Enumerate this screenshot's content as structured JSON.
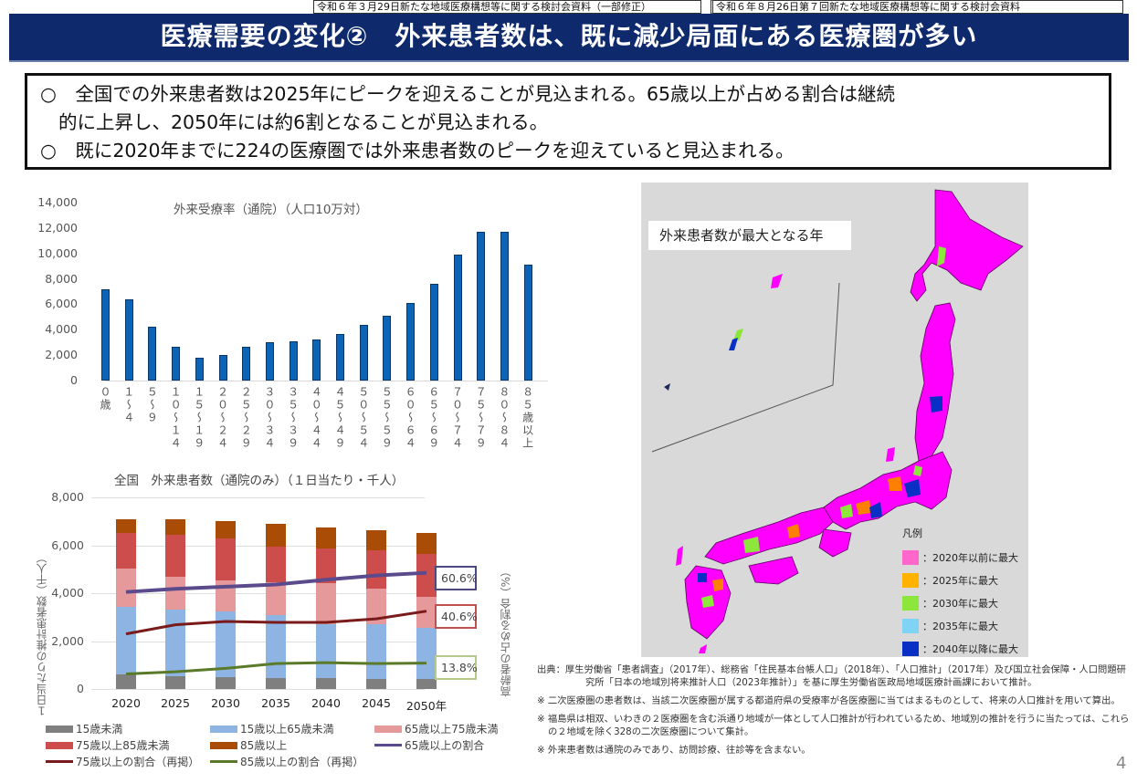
{
  "header": {
    "source_tag_1": "令和６年３月29日新たな地域医療構想等に関する検討会資料（一部修正）",
    "source_tag_2": "令和６年８月26日第７回新たな地域医療構想等に関する検討会資料",
    "title": "医療需要の変化②　外来患者数は、既に減少局面にある医療圏が多い"
  },
  "summary": {
    "line1": "○　全国での外来患者数は2025年にピークを迎えることが見込まれる。65歳以上が占める割合は継続",
    "line2": "的に上昇し、2050年には約6割となることが見込まれる。",
    "line3": "○　既に2020年までに224の医療圏では外来患者数のピークを迎えていると見込まれる。"
  },
  "chart_data": [
    {
      "type": "bar",
      "title": "外来受療率（通院）（人口10万対）",
      "xlabel": "",
      "ylabel": "",
      "ylim": [
        0,
        14000
      ],
      "yticks": [
        "14,000",
        "12,000",
        "10,000",
        "8,000",
        "6,000",
        "4,000",
        "2,000",
        "0"
      ],
      "grid": false,
      "color": "#0b64b6",
      "categories": [
        "０歳",
        "１～４",
        "５～９",
        "１０～１４",
        "１５～１９",
        "２０～２４",
        "２５～２９",
        "３０～３４",
        "３５～３９",
        "４０～４４",
        "４５～４９",
        "５０～５４",
        "５５～５９",
        "６０～６４",
        "６５～６９",
        "７０～７４",
        "７５～７９",
        "８０～８４",
        "８５歳以上"
      ],
      "values": [
        7150,
        6390,
        4260,
        2660,
        1820,
        2010,
        2630,
        2990,
        3090,
        3250,
        3660,
        4350,
        5120,
        6120,
        7630,
        9910,
        11720,
        11720,
        9120
      ]
    },
    {
      "type": "bar",
      "stacked": true,
      "title": "全国　外来患者数（通院のみ）（１日当たり・千人）",
      "xlabel": "年",
      "ylabel": "１日当たりの推計患者数（千人）",
      "y2label": "高齢者の占める割合（%）",
      "ylim": [
        0,
        8000
      ],
      "yticks": [
        "8,000",
        "6,000",
        "4,000",
        "2,000",
        "0"
      ],
      "grid": true,
      "categories": [
        "2020",
        "2025",
        "2030",
        "2035",
        "2040",
        "2045",
        "2050"
      ],
      "series": [
        {
          "name": "15歳未満",
          "color": "#7f7f7f",
          "values": [
            600,
            550,
            490,
            475,
            450,
            420,
            420
          ]
        },
        {
          "name": "15歳以上65歳未満",
          "color": "#8db4e2",
          "values": [
            2820,
            2780,
            2730,
            2615,
            2270,
            2300,
            2140
          ]
        },
        {
          "name": "65歳以上75歳未満",
          "color": "#e6999a",
          "values": [
            1610,
            1370,
            1330,
            1370,
            1700,
            1470,
            1290
          ]
        },
        {
          "name": "75歳以上85歳未満",
          "color": "#cd4c4c",
          "values": [
            1480,
            1740,
            1730,
            1500,
            1450,
            1600,
            1770
          ]
        },
        {
          "name": "85歳以上",
          "color": "#a94c05",
          "values": [
            570,
            640,
            730,
            920,
            890,
            850,
            890
          ]
        }
      ],
      "lines": [
        {
          "name": "65歳以上の割合",
          "color": "#5b4a8c",
          "plot_values": [
            4050,
            4180,
            4270,
            4360,
            4560,
            4740,
            4850
          ],
          "end_label": "60.6%"
        },
        {
          "name": "75歳以上の割合（再掲）",
          "color": "#7a1a1a",
          "plot_values": [
            2300,
            2680,
            2820,
            2780,
            2780,
            2930,
            3250
          ],
          "end_label": "40.6%"
        },
        {
          "name": "85歳以上の割合（再掲）",
          "color": "#5a7a2a",
          "plot_values": [
            630,
            720,
            860,
            1060,
            1100,
            1060,
            1080
          ],
          "end_label": "13.8%"
        }
      ],
      "legend": [
        {
          "label": "15歳未満",
          "kind": "box",
          "color": "#7f7f7f"
        },
        {
          "label": "15歳以上65歳未満",
          "kind": "box",
          "color": "#8db4e2"
        },
        {
          "label": "65歳以上75歳未満",
          "kind": "box",
          "color": "#e6999a"
        },
        {
          "label": "75歳以上85歳未満",
          "kind": "box",
          "color": "#cd4c4c"
        },
        {
          "label": "85歳以上",
          "kind": "box",
          "color": "#a94c05"
        },
        {
          "label": "65歳以上の割合",
          "kind": "line",
          "color": "#5b4a8c"
        },
        {
          "label": "75歳以上の割合（再掲）",
          "kind": "line",
          "color": "#7a1a1a"
        },
        {
          "label": "85歳以上の割合（再掲）",
          "kind": "line",
          "color": "#5a7a2a"
        }
      ],
      "legend_position": "bottom"
    }
  ],
  "map": {
    "title": "外来患者数が最大となる年",
    "legend_title": "凡例",
    "legend": [
      {
        "label": "：2020年以前に最大",
        "color": "#ff66cc"
      },
      {
        "label": "：2025年に最大",
        "color": "#ffb300"
      },
      {
        "label": "：2030年に最大",
        "color": "#8ce63c"
      },
      {
        "label": "：2035年に最大",
        "color": "#7fd4f5"
      },
      {
        "label": "：2040年以降に最大",
        "color": "#0a2fc4"
      }
    ],
    "region_color_main": "#ff00ff"
  },
  "notes": {
    "source": "出典：厚生労働省「患者調査」（2017年）、総務省「住民基本台帳人口」（2018年）、「人口推計」（2017年）及び国立社会保障・人口問題研究所「日本の地域別将来推計人口（2023年推計）」を基に厚生労働省医政局地域医療計画課において推計。",
    "note1": "※ 二次医療圏の患者数は、当該二次医療圏が属する都道府県の受療率が各医療圏に当てはまるものとして、将来の人口推計を用いて算出。",
    "note2": "※ 福島県は相双、いわきの２医療圏を含む浜通り地域が一体として人口推計が行われているため、地域別の推計を行うに当たっては、これらの２地域を除く328の二次医療圏について集計。",
    "note3": "※ 外来患者数は通院のみであり、訪問診療、往診等を含まない。"
  },
  "page_number": "4"
}
